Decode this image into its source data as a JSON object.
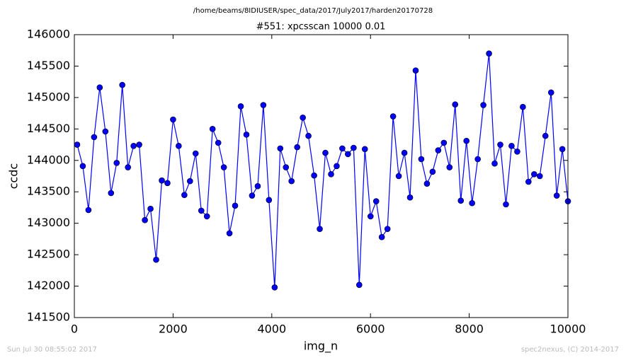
{
  "chart_data": {
    "type": "line",
    "suptitle": "/home/beams/8IDIUSER/spec_data/2017/July2017/harden20170728",
    "title": "#551: xpcsscan 10000 0.01",
    "x_label": "img_n",
    "y_label": "ccdc",
    "footer_left": "Sun Jul 30 08:55:02 2017",
    "footer_right": "spec2nexus, (C) 2014-2017",
    "x": [
      57,
      171,
      286,
      400,
      514,
      629,
      743,
      857,
      971,
      1086,
      1200,
      1314,
      1429,
      1543,
      1657,
      1772,
      1886,
      2000,
      2114,
      2229,
      2343,
      2457,
      2572,
      2686,
      2800,
      2915,
      3029,
      3143,
      3257,
      3372,
      3486,
      3600,
      3715,
      3829,
      3943,
      4058,
      4172,
      4286,
      4400,
      4515,
      4629,
      4743,
      4858,
      4972,
      5086,
      5201,
      5315,
      5429,
      5543,
      5658,
      5772,
      5886,
      6001,
      6115,
      6229,
      6344,
      6458,
      6572,
      6687,
      6801,
      6915,
      7029,
      7144,
      7258,
      7372,
      7487,
      7601,
      7715,
      7830,
      7944,
      8058,
      8173,
      8287,
      8401,
      8515,
      8630,
      8744,
      8858,
      8973,
      9087,
      9201,
      9316,
      9430,
      9544,
      9659,
      9773,
      9887,
      10000
    ],
    "series": [
      {
        "name": "ccdc",
        "color": "#0000ff",
        "values": [
          144250,
          143910,
          143210,
          144370,
          145160,
          144460,
          143480,
          143960,
          145200,
          143890,
          144230,
          144250,
          143050,
          143230,
          142420,
          143680,
          143640,
          144650,
          144230,
          143450,
          143670,
          144110,
          143200,
          143110,
          144500,
          144280,
          143890,
          142840,
          143280,
          144860,
          144410,
          143440,
          143590,
          144880,
          143370,
          141980,
          144190,
          143890,
          143670,
          144210,
          144680,
          144390,
          143760,
          142910,
          144120,
          143780,
          143910,
          144190,
          144100,
          144200,
          142020,
          144180,
          143110,
          143350,
          142780,
          142910,
          144700,
          143750,
          144120,
          143410,
          145430,
          144020,
          143630,
          143820,
          144160,
          144280,
          143890,
          144890,
          143360,
          144310,
          143320,
          144020,
          144880,
          145700,
          143950,
          144250,
          143300,
          144230,
          144140,
          144850,
          143660,
          143780,
          143750,
          144390,
          145080,
          143440,
          144180,
          143350
        ]
      }
    ],
    "xlim": [
      0,
      10000
    ],
    "xticks": [
      0,
      2000,
      4000,
      6000,
      8000,
      10000
    ],
    "ylim": [
      141500,
      146000
    ],
    "yticks": [
      141500,
      142000,
      142500,
      143000,
      143500,
      144000,
      144500,
      145000,
      145500,
      146000
    ],
    "grid": false
  }
}
